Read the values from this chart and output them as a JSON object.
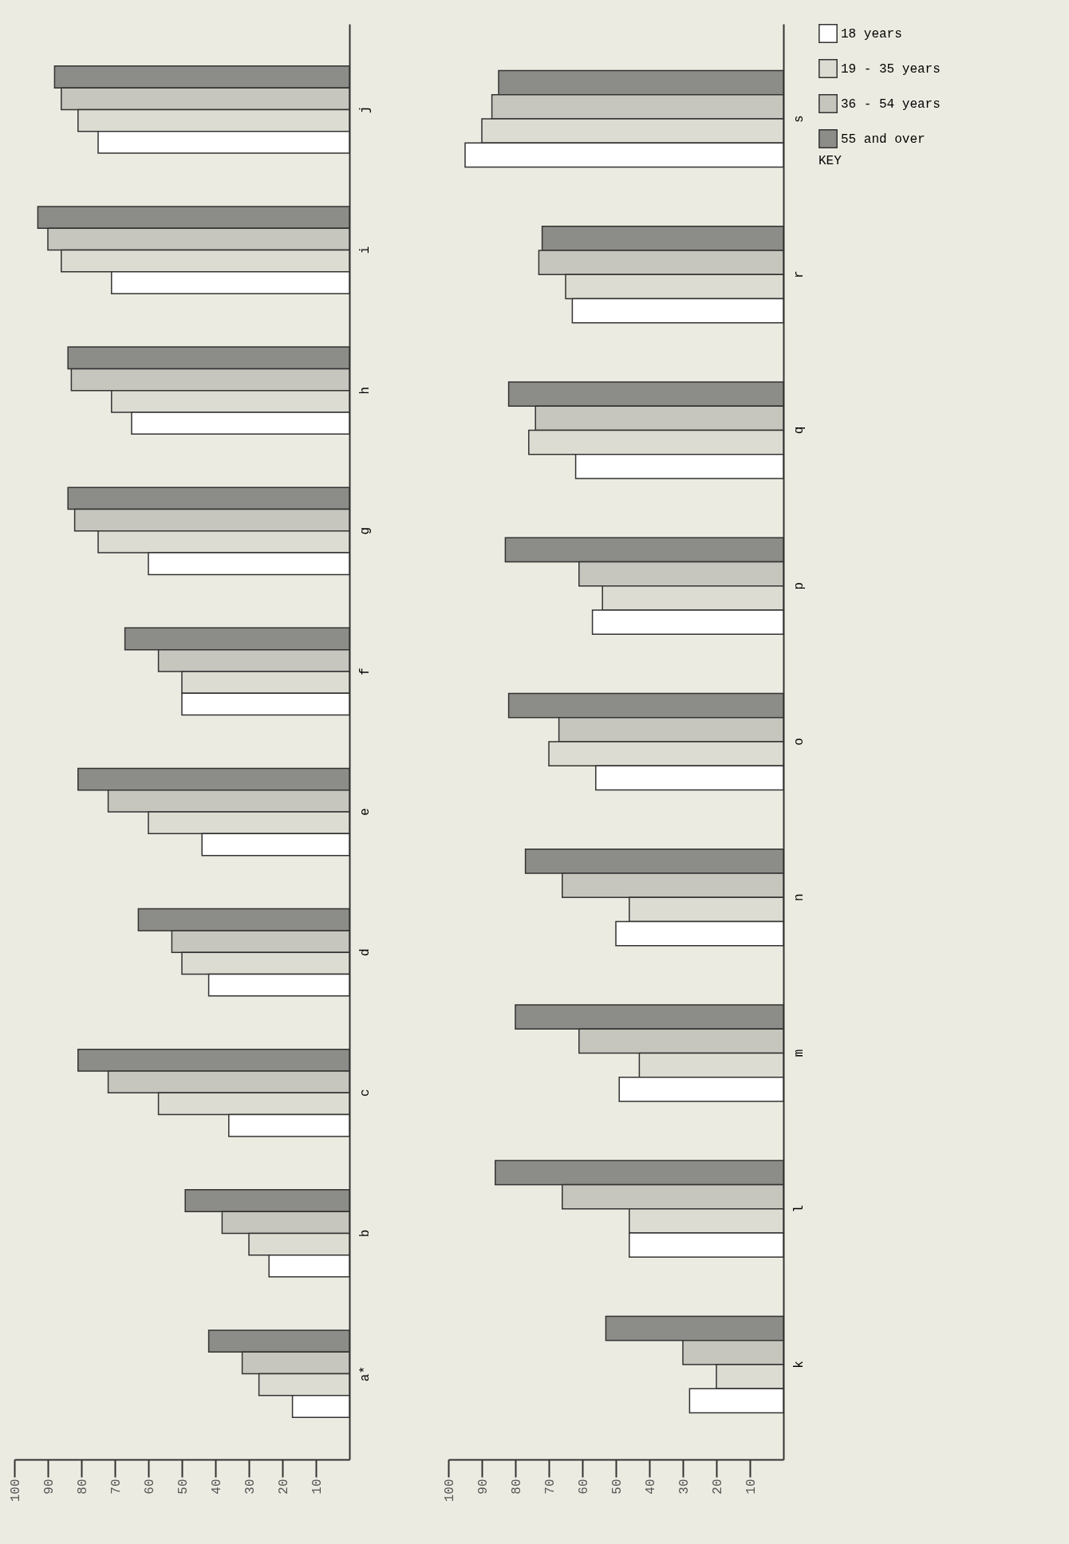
{
  "chart_data": [
    {
      "type": "bar",
      "orientation": "horizontal",
      "categories": [
        "j",
        "i",
        "h",
        "g",
        "f",
        "e",
        "d",
        "c",
        "b",
        "a*"
      ],
      "xlim": [
        100,
        0
      ],
      "xticks": [
        10,
        20,
        30,
        40,
        50,
        60,
        70,
        80,
        90,
        100
      ],
      "grid": false,
      "legend": "right",
      "series": [
        {
          "name": "55 and over",
          "color": "#8c8c88",
          "values": [
            88,
            93,
            84,
            84,
            67,
            81,
            63,
            81,
            49,
            42
          ]
        },
        {
          "name": "36 - 54 years",
          "color": "#c6c6be",
          "values": [
            86,
            90,
            83,
            82,
            57,
            72,
            53,
            72,
            38,
            32
          ]
        },
        {
          "name": "19 - 35 years",
          "color": "#dcdcd2",
          "values": [
            81,
            86,
            71,
            75,
            50,
            60,
            50,
            57,
            30,
            27
          ]
        },
        {
          "name": "18 years",
          "color": "#ffffff",
          "values": [
            75,
            71,
            65,
            60,
            50,
            44,
            42,
            36,
            24,
            17
          ]
        }
      ]
    },
    {
      "type": "bar",
      "orientation": "horizontal",
      "categories": [
        "s",
        "r",
        "q",
        "p",
        "o",
        "n",
        "m",
        "l",
        "k"
      ],
      "xlim": [
        100,
        0
      ],
      "xticks": [
        10,
        20,
        30,
        40,
        50,
        60,
        70,
        80,
        90,
        100
      ],
      "grid": false,
      "legend": "right",
      "legend_title": "KEY",
      "series": [
        {
          "name": "55 and over",
          "color": "#8c8c88",
          "values": [
            85,
            72,
            82,
            83,
            82,
            77,
            80,
            86,
            53
          ]
        },
        {
          "name": "36 - 54 years",
          "color": "#c6c6be",
          "values": [
            87,
            73,
            74,
            61,
            67,
            66,
            61,
            66,
            30
          ]
        },
        {
          "name": "19 - 35 years",
          "color": "#dcdcd2",
          "values": [
            90,
            65,
            76,
            54,
            70,
            46,
            43,
            46,
            20
          ]
        },
        {
          "name": "18 years",
          "color": "#ffffff",
          "values": [
            95,
            63,
            62,
            57,
            56,
            50,
            49,
            46,
            28
          ]
        }
      ]
    }
  ]
}
